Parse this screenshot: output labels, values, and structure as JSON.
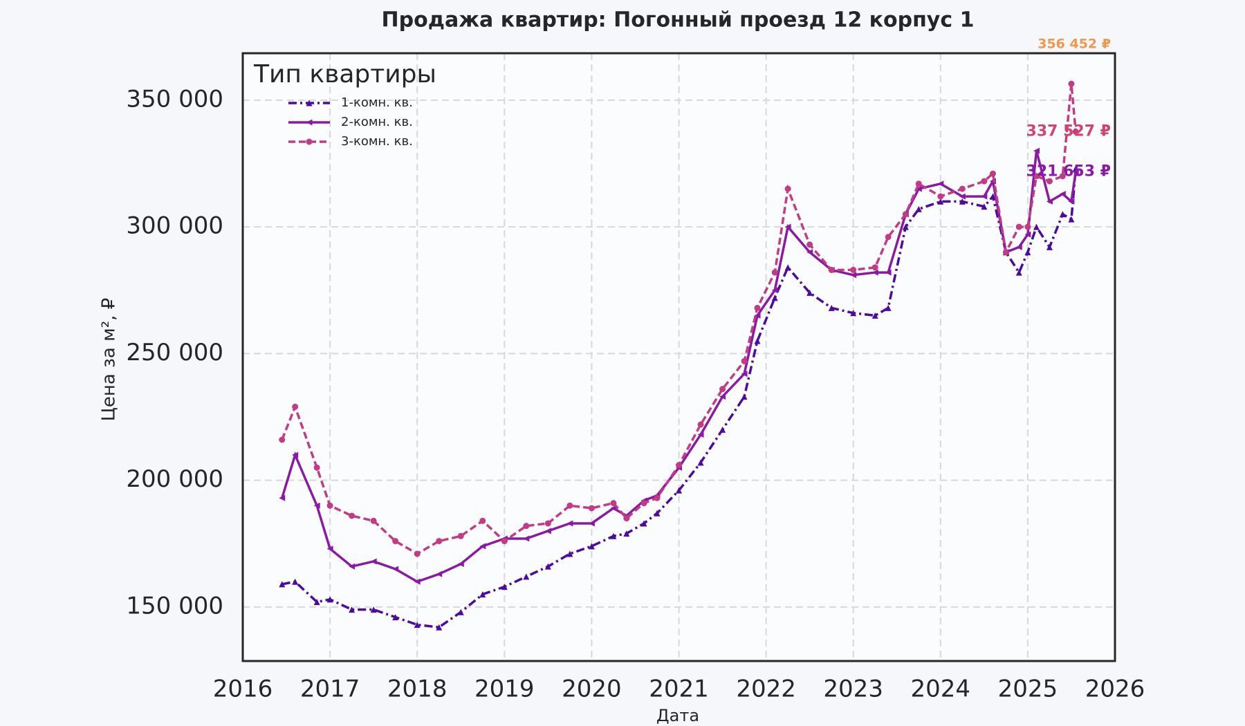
{
  "chart_data": {
    "type": "line",
    "title": "Продажа квартир: Погонный проезд 12 корпус 1",
    "xlabel": "Дата",
    "ylabel": "Цена за м², ₽",
    "legend_title": "Тип квартиры",
    "legend": "upper left",
    "grid": true,
    "x": [
      2016.45,
      2016.6,
      2016.85,
      2017.0,
      2017.25,
      2017.5,
      2017.75,
      2018.0,
      2018.25,
      2018.5,
      2018.75,
      2019.0,
      2019.25,
      2019.5,
      2019.75,
      2020.0,
      2020.25,
      2020.4,
      2020.6,
      2020.75,
      2021.0,
      2021.25,
      2021.5,
      2021.75,
      2021.9,
      2022.1,
      2022.25,
      2022.5,
      2022.75,
      2023.0,
      2023.25,
      2023.4,
      2023.6,
      2023.75,
      2024.0,
      2024.25,
      2024.5,
      2024.6,
      2024.75,
      2024.9,
      2025.0,
      2025.1,
      2025.25,
      2025.4,
      2025.5,
      2025.55
    ],
    "series": [
      {
        "name": "1-комн. кв.",
        "color": "#4b0c9e",
        "marker": "triangle",
        "dash": "dashdot",
        "values": [
          159000,
          160000,
          152000,
          153000,
          149000,
          149000,
          146000,
          143000,
          142000,
          148000,
          155000,
          158000,
          162000,
          166000,
          171000,
          174000,
          178000,
          179000,
          183000,
          187000,
          196000,
          207000,
          220000,
          233000,
          255000,
          272000,
          284000,
          274000,
          268000,
          266000,
          265000,
          268000,
          300000,
          307000,
          310000,
          310000,
          308000,
          312000,
          290000,
          282000,
          290000,
          300000,
          292000,
          305000,
          303000,
          323000
        ]
      },
      {
        "name": "2-комн. кв.",
        "color": "#8a1aa6",
        "marker": "left-triangle",
        "dash": "solid",
        "values": [
          193000,
          210000,
          190000,
          173000,
          166000,
          168000,
          165000,
          160000,
          163000,
          167000,
          174000,
          177000,
          177000,
          180000,
          183000,
          183000,
          189000,
          186000,
          192000,
          194000,
          205000,
          218000,
          233000,
          242000,
          265000,
          275000,
          300000,
          290000,
          283000,
          281000,
          282000,
          282000,
          305000,
          315000,
          317000,
          312000,
          312000,
          318000,
          290000,
          292000,
          297000,
          330000,
          310000,
          313000,
          310000,
          321653
        ]
      },
      {
        "name": "3-комн. кв.",
        "color": "#c13c85",
        "marker": "circle",
        "dash": "dashed",
        "values": [
          216000,
          229000,
          205000,
          190000,
          186000,
          184000,
          176000,
          171000,
          176000,
          178000,
          184000,
          176000,
          182000,
          183000,
          190000,
          189000,
          191000,
          185000,
          191000,
          193000,
          206000,
          222000,
          236000,
          247000,
          268000,
          282000,
          315000,
          293000,
          283000,
          283000,
          284000,
          296000,
          305000,
          317000,
          312000,
          315000,
          318000,
          321000,
          290000,
          300000,
          300000,
          320000,
          318000,
          320000,
          356452,
          337527
        ]
      }
    ],
    "annotations": [
      {
        "text": "356 452 ₽",
        "value": 356452,
        "color": "#f0974a"
      },
      {
        "text": "337 527 ₽",
        "value": 337527,
        "color": "#d0456e"
      },
      {
        "text": "321 653 ₽",
        "value": 321653,
        "color": "#8a1aa6"
      }
    ],
    "xlim": [
      2016,
      2026
    ],
    "xticks": [
      2016,
      2017,
      2018,
      2019,
      2020,
      2021,
      2022,
      2023,
      2024,
      2025,
      2026
    ],
    "ylim": [
      128700,
      368500
    ],
    "yticks": [
      {
        "value": 150000,
        "label": "150 000"
      },
      {
        "value": 200000,
        "label": "200 000"
      },
      {
        "value": 250000,
        "label": "250 000"
      },
      {
        "value": 300000,
        "label": "300 000"
      },
      {
        "value": 350000,
        "label": "350 000"
      }
    ]
  }
}
